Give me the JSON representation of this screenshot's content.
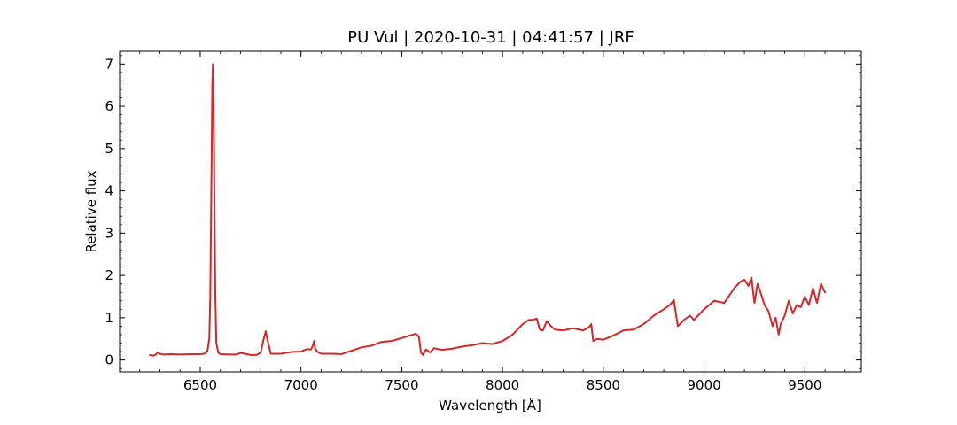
{
  "chart_data": {
    "type": "line",
    "title": "PU Vul | 2020-10-31 | 04:41:57 | JRF",
    "xlabel": "Wavelength [Å]",
    "ylabel": "Relative flux",
    "xlim": [
      6100,
      9780
    ],
    "ylim": [
      -0.28,
      7.3
    ],
    "xticks": [
      6500,
      7000,
      7500,
      8000,
      8500,
      9000,
      9500
    ],
    "yticks": [
      0,
      1,
      2,
      3,
      4,
      5,
      6,
      7
    ],
    "grid": false,
    "series": [
      {
        "color": "#d62728",
        "x": [
          6250,
          6265,
          6280,
          6290,
          6300,
          6320,
          6350,
          6400,
          6450,
          6500,
          6520,
          6535,
          6545,
          6550,
          6555,
          6560,
          6563,
          6566,
          6570,
          6575,
          6580,
          6590,
          6600,
          6650,
          6680,
          6700,
          6750,
          6780,
          6800,
          6815,
          6825,
          6835,
          6850,
          6900,
          6950,
          7000,
          7030,
          7050,
          7060,
          7065,
          7070,
          7080,
          7100,
          7150,
          7200,
          7250,
          7300,
          7350,
          7400,
          7450,
          7500,
          7540,
          7570,
          7585,
          7595,
          7605,
          7620,
          7640,
          7660,
          7700,
          7750,
          7800,
          7850,
          7900,
          7950,
          8000,
          8050,
          8100,
          8130,
          8150,
          8170,
          8185,
          8200,
          8220,
          8240,
          8260,
          8300,
          8350,
          8400,
          8430,
          8440,
          8450,
          8470,
          8500,
          8550,
          8600,
          8650,
          8700,
          8750,
          8800,
          8830,
          8850,
          8860,
          8870,
          8900,
          8930,
          8950,
          9000,
          9050,
          9100,
          9150,
          9180,
          9200,
          9220,
          9235,
          9250,
          9265,
          9280,
          9300,
          9320,
          9340,
          9355,
          9370,
          9380,
          9400,
          9420,
          9440,
          9460,
          9480,
          9500,
          9520,
          9540,
          9560,
          9580,
          9600
        ],
        "y": [
          0.12,
          0.1,
          0.13,
          0.18,
          0.15,
          0.13,
          0.14,
          0.13,
          0.14,
          0.14,
          0.15,
          0.2,
          0.5,
          1.5,
          4.0,
          6.5,
          7.0,
          6.5,
          4.0,
          1.5,
          0.4,
          0.17,
          0.14,
          0.13,
          0.13,
          0.17,
          0.12,
          0.12,
          0.18,
          0.5,
          0.68,
          0.45,
          0.15,
          0.15,
          0.19,
          0.2,
          0.26,
          0.25,
          0.36,
          0.45,
          0.28,
          0.2,
          0.15,
          0.15,
          0.14,
          0.22,
          0.3,
          0.34,
          0.43,
          0.45,
          0.52,
          0.58,
          0.62,
          0.55,
          0.18,
          0.12,
          0.25,
          0.18,
          0.28,
          0.24,
          0.27,
          0.32,
          0.35,
          0.4,
          0.38,
          0.45,
          0.6,
          0.85,
          0.95,
          0.95,
          0.98,
          0.72,
          0.7,
          0.92,
          0.8,
          0.72,
          0.7,
          0.75,
          0.7,
          0.78,
          0.85,
          0.45,
          0.5,
          0.48,
          0.58,
          0.7,
          0.72,
          0.85,
          1.05,
          1.2,
          1.3,
          1.42,
          1.1,
          0.8,
          0.95,
          1.05,
          0.95,
          1.2,
          1.4,
          1.35,
          1.7,
          1.85,
          1.9,
          1.75,
          1.95,
          1.35,
          1.8,
          1.6,
          1.3,
          1.15,
          0.8,
          1.0,
          0.6,
          0.85,
          1.05,
          1.4,
          1.1,
          1.3,
          1.25,
          1.5,
          1.3,
          1.7,
          1.35,
          1.8,
          1.6
        ]
      }
    ]
  }
}
